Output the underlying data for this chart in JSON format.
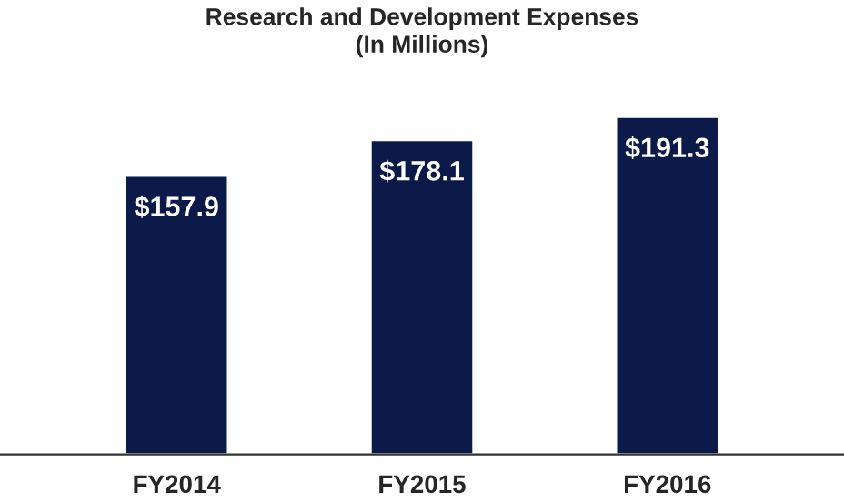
{
  "chart_data": {
    "type": "bar",
    "title": "Research and Development Expenses\n(In Millions)",
    "categories": [
      "FY2014",
      "FY2015",
      "FY2016"
    ],
    "values": [
      157.9,
      178.1,
      191.3
    ],
    "value_labels": [
      "$157.9",
      "$178.1",
      "$191.3"
    ],
    "color": "#0b1a48",
    "grid": false,
    "legend": false
  }
}
